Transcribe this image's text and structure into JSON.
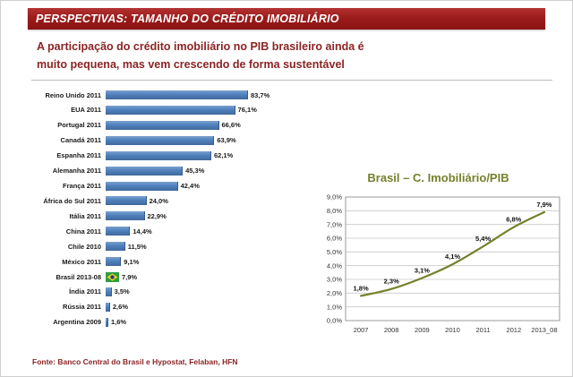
{
  "header": {
    "title": "PERSPECTIVAS: TAMANHO DO CRÉDITO IMOBILIÁRIO"
  },
  "subtitle": "A participação do crédito imobiliário no PIB brasileiro ainda é\nmuito pequena, mas vem crescendo de forma sustentável",
  "source": "Fonte: Banco Central do Brasil e Hypostat, Felaban, HFN",
  "colors": {
    "header_bg": "#9c1c1c",
    "header_text": "#ffffff",
    "subtitle_text": "#8b2424",
    "bar_fill": "#4f81bd",
    "line": "#76802b",
    "line_title": "#76802b",
    "source_text": "#8b2424",
    "gridline": "#c9c9c9"
  },
  "chart_data": [
    {
      "type": "bar",
      "orientation": "horizontal",
      "categories": [
        "Reino Unido 2011",
        "EUA 2011",
        "Portugal 2011",
        "Canadá 2011",
        "Espanha 2011",
        "Alemanha 2011",
        "França 2011",
        "África do Sul 2011",
        "Itália 2011",
        "China 2011",
        "Chile 2010",
        "México 2011",
        "Brasil 2013-08",
        "Índia 2011",
        "Rússia 2011",
        "Argentina 2009"
      ],
      "values": [
        83.7,
        76.1,
        66.6,
        63.9,
        62.1,
        45.3,
        42.4,
        24.0,
        22.9,
        14.4,
        11.5,
        9.1,
        7.9,
        3.5,
        2.6,
        1.6
      ],
      "labels": [
        "83,7%",
        "76,1%",
        "66,6%",
        "63,9%",
        "62,1%",
        "45,3%",
        "42,4%",
        "24,0%",
        "22,9%",
        "14,4%",
        "11,5%",
        "9,1%",
        "7,9%",
        "3,5%",
        "2,6%",
        "1,6%"
      ],
      "xlim": [
        0,
        90
      ],
      "flag_category": "Brasil 2013-08",
      "bar_color": "#4f81bd"
    },
    {
      "type": "line",
      "title": "Brasil – C. Imobiliário/PIB",
      "x": [
        "2007",
        "2008",
        "2009",
        "2010",
        "2011",
        "2012",
        "2013_08"
      ],
      "values": [
        1.8,
        2.3,
        3.1,
        4.1,
        5.4,
        6.8,
        7.9
      ],
      "labels": [
        "1,8%",
        "2,3%",
        "3,1%",
        "4,1%",
        "5,4%",
        "6,8%",
        "7,9%"
      ],
      "ylim": [
        0,
        9
      ],
      "ytick_labels": [
        "0,0%",
        "1,0%",
        "2,0%",
        "3,0%",
        "4,0%",
        "5,0%",
        "6,0%",
        "7,0%",
        "8,0%",
        "9,0%"
      ],
      "grid": true,
      "legend": "none",
      "smooth": true
    }
  ]
}
